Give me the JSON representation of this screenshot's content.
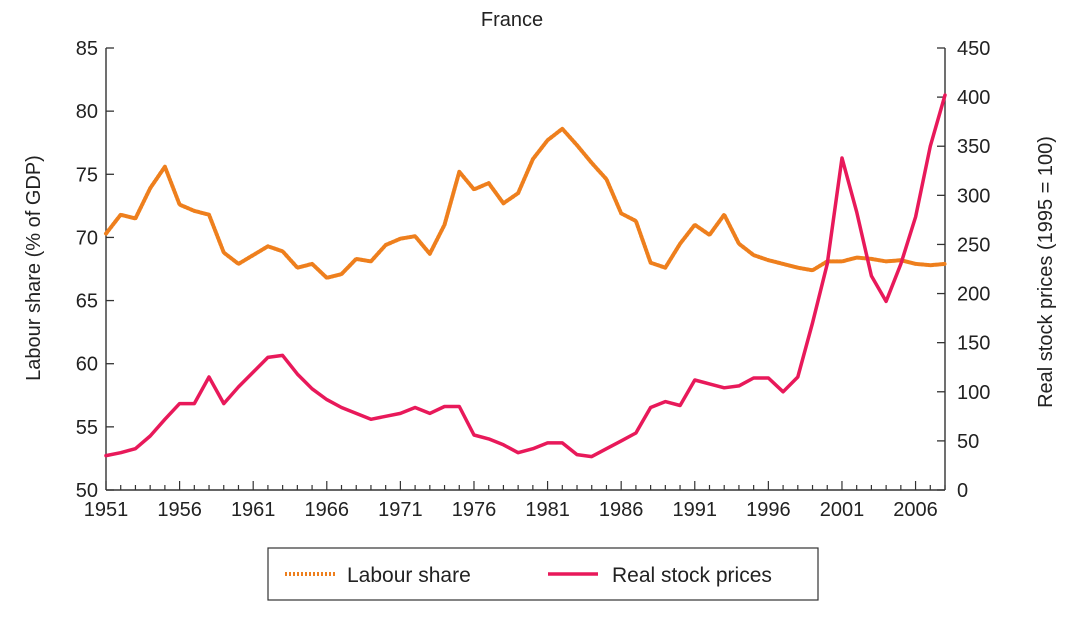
{
  "chart_data": {
    "type": "line",
    "title": "France",
    "ylabel_left": "Labour share (% of GDP)",
    "ylabel_right": "Real stock prices (1995 = 100)",
    "xlim": [
      1951,
      2008
    ],
    "ylim_left": [
      50,
      85
    ],
    "ylim_right": [
      0,
      450
    ],
    "x_ticks": [
      "1951",
      "1956",
      "1961",
      "1966",
      "1971",
      "1976",
      "1981",
      "1986",
      "1991",
      "1996",
      "2001",
      "2006"
    ],
    "y_ticks_left": [
      "50",
      "55",
      "60",
      "65",
      "70",
      "75",
      "80",
      "85"
    ],
    "y_ticks_right": [
      "0",
      "50",
      "100",
      "150",
      "200",
      "250",
      "300",
      "350",
      "400",
      "450"
    ],
    "legend_position": "bottom-center",
    "grid": false,
    "series": [
      {
        "name": "Labour share",
        "axis": "left",
        "color": "#ee7f1d",
        "style": "dotted-thick",
        "x": [
          1951,
          1952,
          1953,
          1954,
          1955,
          1956,
          1957,
          1958,
          1959,
          1960,
          1961,
          1962,
          1963,
          1964,
          1965,
          1966,
          1967,
          1968,
          1969,
          1970,
          1971,
          1972,
          1973,
          1974,
          1975,
          1976,
          1977,
          1978,
          1979,
          1980,
          1981,
          1982,
          1983,
          1984,
          1985,
          1986,
          1987,
          1988,
          1989,
          1990,
          1991,
          1992,
          1993,
          1994,
          1995,
          1996,
          1997,
          1998,
          1999,
          2000,
          2001,
          2002,
          2003,
          2004,
          2005,
          2006,
          2007,
          2008
        ],
        "y": [
          70.3,
          71.8,
          71.5,
          73.9,
          75.6,
          72.6,
          72.1,
          71.8,
          68.8,
          67.9,
          68.6,
          69.3,
          68.9,
          67.6,
          67.9,
          66.8,
          67.1,
          68.3,
          68.1,
          69.4,
          69.9,
          70.1,
          68.7,
          71.0,
          75.2,
          73.8,
          74.3,
          72.7,
          73.5,
          76.2,
          77.7,
          78.6,
          77.3,
          75.9,
          74.6,
          71.9,
          71.3,
          68.0,
          67.6,
          69.5,
          71.0,
          70.2,
          71.8,
          69.5,
          68.6,
          68.2,
          67.9,
          67.6,
          67.4,
          68.1,
          68.1,
          68.4,
          68.3,
          68.1,
          68.2,
          67.9,
          67.8,
          67.9
        ]
      },
      {
        "name": "Real stock prices",
        "axis": "right",
        "color": "#e8195a",
        "style": "solid",
        "x": [
          1951,
          1952,
          1953,
          1954,
          1955,
          1956,
          1957,
          1958,
          1959,
          1960,
          1961,
          1962,
          1963,
          1964,
          1965,
          1966,
          1967,
          1968,
          1969,
          1970,
          1971,
          1972,
          1973,
          1974,
          1975,
          1976,
          1977,
          1978,
          1979,
          1980,
          1981,
          1982,
          1983,
          1984,
          1985,
          1986,
          1987,
          1988,
          1989,
          1990,
          1991,
          1992,
          1993,
          1994,
          1995,
          1996,
          1997,
          1998,
          1999,
          2000,
          2001,
          2002,
          2003,
          2004,
          2005,
          2006,
          2007,
          2008
        ],
        "y": [
          35,
          38,
          42,
          55,
          72,
          88,
          88,
          115,
          88,
          105,
          120,
          135,
          137,
          118,
          103,
          92,
          84,
          78,
          72,
          75,
          78,
          84,
          78,
          85,
          85,
          56,
          52,
          46,
          38,
          42,
          48,
          48,
          36,
          34,
          42,
          50,
          58,
          84,
          90,
          86,
          112,
          108,
          104,
          106,
          114,
          114,
          100,
          115,
          170,
          230,
          338,
          283,
          218,
          192,
          230,
          278,
          350,
          402
        ]
      }
    ]
  }
}
